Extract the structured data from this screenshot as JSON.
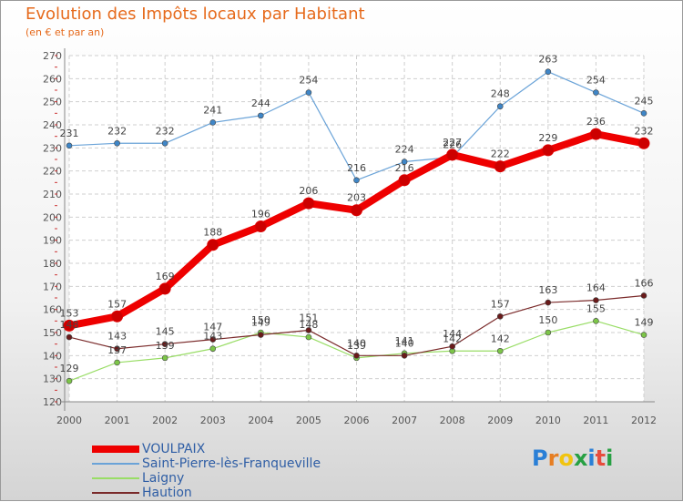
{
  "title": "Evolution des Impôts locaux par Habitant",
  "subtitle": "(en € et par an)",
  "logo": {
    "text": "Proxiti",
    "colors": [
      "#2a7fd6",
      "#e67e22",
      "#f1c40f",
      "#27a043",
      "#2a7fd6",
      "#e74c3c",
      "#27a043"
    ]
  },
  "chart_data": {
    "type": "line",
    "x": [
      2000,
      2001,
      2002,
      2003,
      2004,
      2005,
      2006,
      2007,
      2008,
      2009,
      2010,
      2011,
      2012
    ],
    "ylim": [
      120,
      270
    ],
    "yticks": [
      120,
      130,
      140,
      150,
      160,
      170,
      180,
      190,
      200,
      210,
      220,
      230,
      240,
      250,
      260,
      270
    ],
    "grid": true,
    "series": [
      {
        "name": "VOULPAIX",
        "color": "#ee0000",
        "dot": "#cc0000",
        "width": 8,
        "radius": 6,
        "values": [
          153,
          157,
          169,
          188,
          196,
          206,
          203,
          216,
          227,
          222,
          229,
          236,
          232
        ]
      },
      {
        "name": "Saint-Pierre-lès-Franqueville",
        "color": "#6aa3d8",
        "dot": "#3f86c7",
        "width": 1.2,
        "radius": 3,
        "values": [
          231,
          232,
          232,
          241,
          244,
          254,
          216,
          224,
          226,
          248,
          263,
          254,
          245
        ]
      },
      {
        "name": "Laigny",
        "color": "#99dd66",
        "dot": "#7cc548",
        "width": 1.2,
        "radius": 3,
        "values": [
          129,
          137,
          139,
          143,
          150,
          148,
          139,
          141,
          142,
          142,
          150,
          155,
          149
        ]
      },
      {
        "name": "Haution",
        "color": "#7a2a2a",
        "dot": "#6a1a1a",
        "width": 1.2,
        "radius": 3,
        "values": [
          148,
          143,
          145,
          147,
          149,
          151,
          140,
          140,
          144,
          157,
          163,
          164,
          166
        ]
      }
    ]
  }
}
